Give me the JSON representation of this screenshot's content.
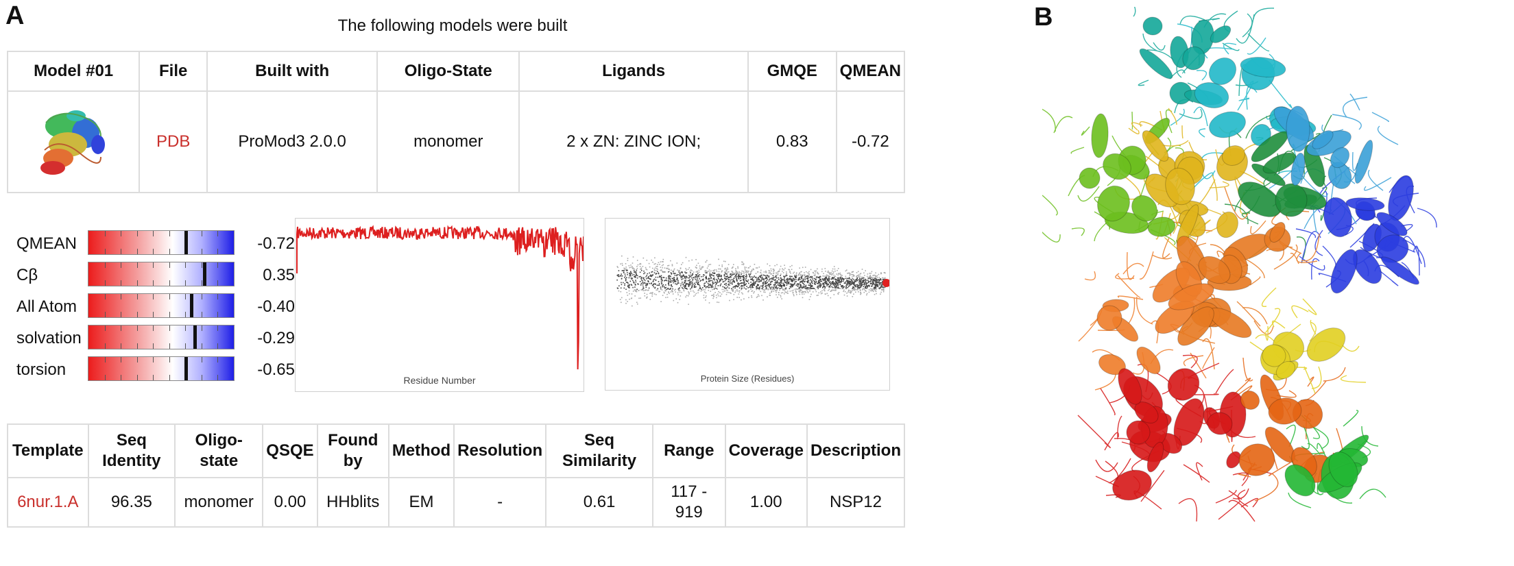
{
  "labels": {
    "a": "A",
    "b": "B"
  },
  "heading": "The following models were built",
  "models_table": {
    "headers": [
      "Model #01",
      "File",
      "Built with",
      "Oligo-State",
      "Ligands",
      "GMQE",
      "QMEAN"
    ],
    "row": {
      "file": "PDB",
      "built_with": "ProMod3 2.0.0",
      "oligo_state": "monomer",
      "ligands": "2 x ZN: ZINC ION;",
      "gmqe": "0.83",
      "qmean": "-0.72"
    }
  },
  "scores": [
    {
      "label": "QMEAN",
      "value": "-0.72",
      "marker": 0.66
    },
    {
      "label": "Cβ",
      "value": "0.35",
      "marker": 0.79
    },
    {
      "label": "All Atom",
      "value": "-0.40",
      "marker": 0.7
    },
    {
      "label": "solvation",
      "value": "-0.29",
      "marker": 0.72
    },
    {
      "label": "torsion",
      "value": "-0.65",
      "marker": 0.66
    }
  ],
  "plots": {
    "residue_xlabel": "Residue Number",
    "size_xlabel": "Protein Size (Residues)"
  },
  "templates_table": {
    "headers": [
      "Template",
      "Seq Identity",
      "Oligo-state",
      "QSQE",
      "Found by",
      "Method",
      "Resolution",
      "Seq Similarity",
      "Range",
      "Coverage",
      "Description"
    ],
    "row": {
      "template": "6nur.1.A",
      "seq_identity": "96.35",
      "oligo_state": "monomer",
      "qsqe": "0.00",
      "found_by": "HHblits",
      "method": "EM",
      "resolution": "-",
      "seq_similarity": "0.61",
      "range": "117 - 919",
      "coverage": "1.00",
      "description": "NSP12"
    }
  },
  "colors": {
    "link_red": "#c9302c",
    "plot_red": "#dd1f1f",
    "scatter_gray": "#555555"
  }
}
